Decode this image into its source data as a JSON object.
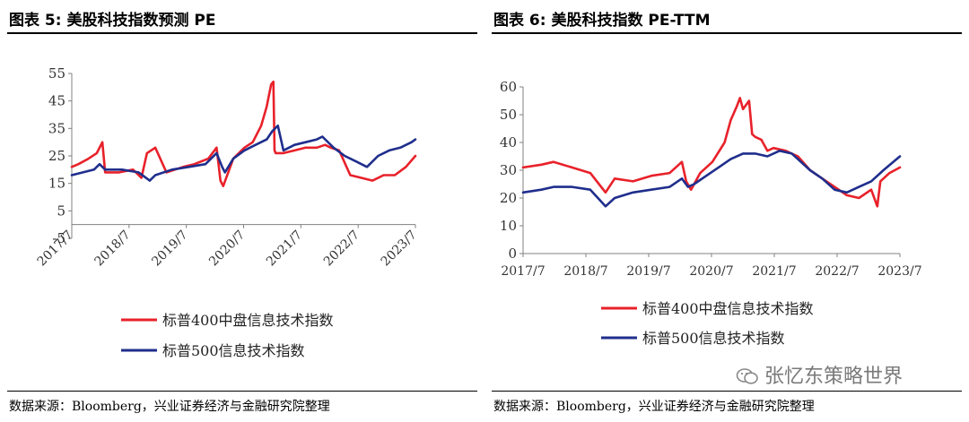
{
  "charts": [
    {
      "fig_title": "图表 5:  美股科技指数预测 PE",
      "source": "数据来源：Bloomberg，兴业证券经济与金融研究院整理",
      "chart_data": {
        "type": "line",
        "x_ticks": [
          "2017/7",
          "2018/7",
          "2019/7",
          "2020/7",
          "2021/7",
          "2022/7",
          "2023/7"
        ],
        "y_ticks": [
          "-5",
          "5",
          "15",
          "25",
          "35",
          "45",
          "55"
        ],
        "ylim": [
          -5,
          55
        ],
        "xlim": [
          2017.5,
          2023.67
        ],
        "x_tick_rotation": "rotated",
        "grid": false,
        "legend_position": "bottom",
        "series": [
          {
            "name": "标普400中盘信息技术指数",
            "color": "#e8212a",
            "x": [
              2017.5,
              2017.62,
              2017.8,
              2017.95,
              2018.05,
              2018.1,
              2018.35,
              2018.6,
              2018.75,
              2018.85,
              2019.0,
              2019.2,
              2019.5,
              2019.7,
              2019.95,
              2020.1,
              2020.17,
              2020.22,
              2020.4,
              2020.6,
              2020.75,
              2020.9,
              2021.0,
              2021.08,
              2021.12,
              2021.14,
              2021.16,
              2021.3,
              2021.5,
              2021.7,
              2021.9,
              2022.05,
              2022.15,
              2022.3,
              2022.5,
              2022.7,
              2022.9,
              2023.1,
              2023.3,
              2023.5,
              2023.67
            ],
            "y": [
              21,
              22,
              24,
              26,
              30,
              19,
              19,
              20,
              17,
              26,
              28,
              19,
              21,
              22,
              24,
              28,
              16,
              14,
              24,
              28,
              30,
              36,
              43,
              51,
              52,
              27,
              26,
              26,
              27,
              28,
              28,
              29,
              28,
              27,
              18,
              17,
              16,
              18,
              18,
              21,
              25
            ]
          },
          {
            "name": "标普500信息技术指数",
            "color": "#1f2e8c",
            "x": [
              2017.5,
              2017.7,
              2017.9,
              2018.0,
              2018.1,
              2018.4,
              2018.7,
              2018.9,
              2019.0,
              2019.3,
              2019.6,
              2019.9,
              2020.1,
              2020.2,
              2020.25,
              2020.4,
              2020.6,
              2020.8,
              2021.0,
              2021.1,
              2021.2,
              2021.3,
              2021.5,
              2021.7,
              2021.9,
              2022.0,
              2022.2,
              2022.4,
              2022.6,
              2022.8,
              2023.0,
              2023.2,
              2023.4,
              2023.6,
              2023.67
            ],
            "y": [
              18,
              19,
              20,
              22,
              20,
              20,
              19,
              16,
              18,
              20,
              21,
              22,
              26,
              21,
              19,
              24,
              27,
              29,
              31,
              34,
              36,
              27,
              29,
              30,
              31,
              32,
              28,
              25,
              23,
              21,
              25,
              27,
              28,
              30,
              31
            ]
          }
        ]
      }
    },
    {
      "fig_title": "图表 6:  美股科技指数 PE-TTM",
      "source": "数据来源：Bloomberg，兴业证券经济与金融研究院整理",
      "chart_data": {
        "type": "line",
        "x_ticks": [
          "2017/7",
          "2018/7",
          "2019/7",
          "2020/7",
          "2021/7",
          "2022/7",
          "2023/7"
        ],
        "y_ticks": [
          "0",
          "10",
          "20",
          "30",
          "40",
          "50",
          "60"
        ],
        "ylim": [
          0,
          60
        ],
        "xlim": [
          2017.5,
          2023.67
        ],
        "x_tick_rotation": "none",
        "grid": false,
        "legend_position": "bottom",
        "series": [
          {
            "name": "标普400中盘信息技术指数",
            "color": "#e8212a",
            "x": [
              2017.5,
              2017.8,
              2018.0,
              2018.3,
              2018.6,
              2018.85,
              2019.0,
              2019.3,
              2019.6,
              2019.9,
              2020.1,
              2020.17,
              2020.25,
              2020.4,
              2020.6,
              2020.8,
              2020.9,
              2021.0,
              2021.05,
              2021.1,
              2021.2,
              2021.25,
              2021.3,
              2021.4,
              2021.5,
              2021.6,
              2021.8,
              2022.0,
              2022.2,
              2022.4,
              2022.6,
              2022.8,
              2023.0,
              2023.2,
              2023.3,
              2023.35,
              2023.5,
              2023.67
            ],
            "y": [
              31,
              32,
              33,
              31,
              29,
              22,
              27,
              26,
              28,
              29,
              33,
              26,
              23,
              29,
              33,
              40,
              48,
              53,
              56,
              52,
              55,
              43,
              42,
              41,
              37,
              38,
              37,
              35,
              30,
              27,
              24,
              21,
              20,
              23,
              17,
              26,
              29,
              31
            ]
          },
          {
            "name": "标普500信息技术指数",
            "color": "#1f2e8c",
            "x": [
              2017.5,
              2017.8,
              2018.0,
              2018.3,
              2018.6,
              2018.85,
              2019.0,
              2019.3,
              2019.6,
              2019.9,
              2020.1,
              2020.2,
              2020.3,
              2020.5,
              2020.7,
              2020.9,
              2021.1,
              2021.3,
              2021.5,
              2021.7,
              2021.9,
              2022.0,
              2022.2,
              2022.4,
              2022.6,
              2022.8,
              2023.0,
              2023.2,
              2023.4,
              2023.67
            ],
            "y": [
              22,
              23,
              24,
              24,
              23,
              17,
              20,
              22,
              23,
              24,
              27,
              24,
              25,
              28,
              31,
              34,
              36,
              36,
              35,
              37,
              36,
              34,
              30,
              27,
              23,
              22,
              24,
              26,
              30,
              35
            ]
          }
        ]
      }
    }
  ],
  "watermark": {
    "text": "张忆东策略世界",
    "icon": "wechat-icon"
  }
}
